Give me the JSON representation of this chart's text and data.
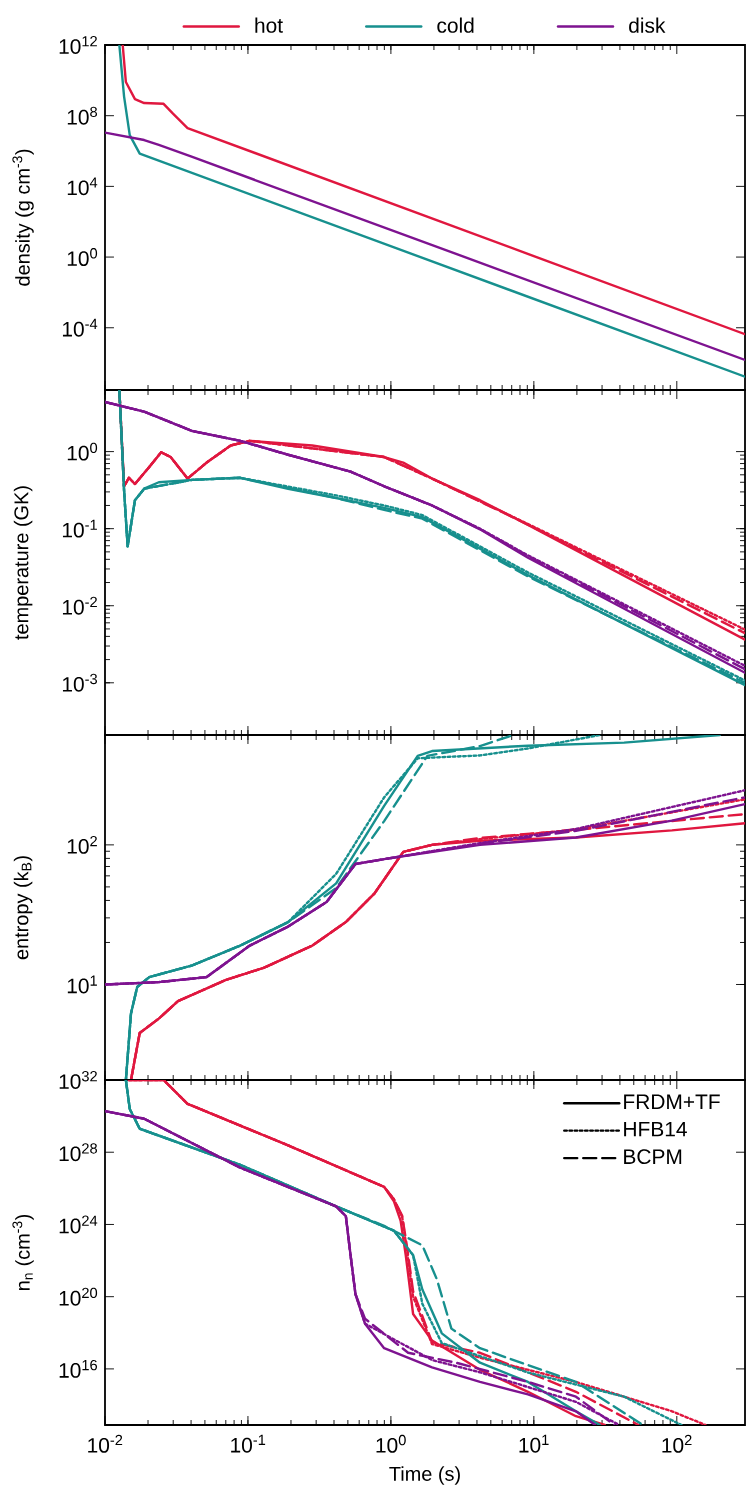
{
  "chart_data": [
    {
      "type": "line",
      "log": "xy",
      "legend": "top",
      "ylabel": "density (g cm$^{-3}$)",
      "tick_labels": "y",
      "xlim": [
        0.01,
        300
      ],
      "xticks": [
        {
          "value": 0.01,
          "label": null
        },
        {
          "value": 0.1,
          "label": null
        },
        {
          "value": 1,
          "label": null
        },
        {
          "value": 10,
          "label": null
        },
        {
          "value": 100,
          "label": null
        }
      ],
      "ylim": [
        3e-08,
        1000000000000.0
      ],
      "yticks": [
        {
          "value": 0.0001,
          "label": "10$^{-4}$"
        },
        {
          "value": 1,
          "label": "10$^{0}$"
        },
        {
          "value": 10000.0,
          "label": "10$^{4}$"
        },
        {
          "value": 100000000.0,
          "label": "10$^{8}$"
        },
        {
          "value": 1000000000000.0,
          "label": "10$^{12}$"
        }
      ],
      "series": [
        {
          "name": "hot",
          "color": "#e0173f",
          "line_style": "solid",
          "x": [
            0.0133,
            0.014,
            0.0162,
            0.0188,
            0.0257,
            0.0299,
            0.0378,
            300
          ],
          "values": [
            1000000000000.0,
            8000000000.0,
            870000000.0,
            520000000.0,
            470000000.0,
            130000000.0,
            20000000.0,
            4.3e-05
          ]
        },
        {
          "name": "cold",
          "color": "#17908e",
          "line_style": "solid",
          "x": [
            0.0126,
            0.0136,
            0.0149,
            0.0175,
            300
          ],
          "values": [
            1000000000000.0,
            1200000000.0,
            7900000.0,
            710000.0,
            1.7e-07
          ]
        },
        {
          "name": "disk",
          "color": "#7e1390",
          "line_style": "solid",
          "x": [
            0.01,
            0.0188,
            0.0238,
            0.0408,
            300
          ],
          "values": [
            11000000.0,
            4200000.0,
            2200000.0,
            460000.0,
            1.5e-06
          ]
        }
      ]
    },
    {
      "type": "line",
      "log": "xy",
      "ylabel": "temperature (GK)",
      "tick_labels": "y",
      "xlim": [
        0.01,
        300
      ],
      "xticks": [
        {
          "value": 0.01,
          "label": null
        },
        {
          "value": 0.1,
          "label": null
        },
        {
          "value": 1,
          "label": null
        },
        {
          "value": 10,
          "label": null
        },
        {
          "value": 100,
          "label": null
        }
      ],
      "ylim": [
        0.00021,
        6.3
      ],
      "yticks": [
        {
          "value": 0.001,
          "label": "10$^{-3}$"
        },
        {
          "value": 0.01,
          "label": "10$^{-2}$"
        },
        {
          "value": 0.1,
          "label": "10$^{-1}$"
        },
        {
          "value": 1,
          "label": "10$^{0}$"
        }
      ],
      "series": [
        {
          "color": "#e0173f",
          "line_style": "solid",
          "x": [
            0.0126,
            0.0136,
            0.0147,
            0.0162,
            0.0204,
            0.0247,
            0.0288,
            0.0378,
            0.0514,
            0.0757,
            0.103,
            0.282,
            0.897,
            1.22,
            1.94,
            4.2,
            9.1,
            300
          ],
          "values": [
            6.3,
            0.355,
            0.457,
            0.38,
            0.63,
            0.98,
            0.85,
            0.447,
            0.72,
            1.2,
            1.38,
            1.2,
            0.85,
            0.72,
            0.447,
            0.234,
            0.112,
            0.00363
          ]
        },
        {
          "color": "#e0173f",
          "line_style": "dotted",
          "x": [
            0.0126,
            0.0136,
            0.0147,
            0.0162,
            0.0204,
            0.0247,
            0.0288,
            0.0378,
            0.0514,
            0.0757,
            0.103,
            0.897,
            1.94,
            9.1,
            300
          ],
          "values": [
            6.3,
            0.355,
            0.457,
            0.38,
            0.63,
            0.98,
            0.85,
            0.447,
            0.72,
            1.2,
            1.38,
            0.85,
            0.447,
            0.115,
            0.0049
          ]
        },
        {
          "color": "#e0173f",
          "line_style": "dashed",
          "x": [
            0.0126,
            0.0136,
            0.0147,
            0.0162,
            0.0204,
            0.0247,
            0.0288,
            0.0378,
            0.0514,
            0.0757,
            0.103,
            0.897,
            1.94,
            9.1,
            300
          ],
          "values": [
            6.3,
            0.355,
            0.457,
            0.38,
            0.63,
            0.98,
            0.85,
            0.447,
            0.72,
            1.2,
            1.38,
            0.85,
            0.447,
            0.113,
            0.0044
          ]
        },
        {
          "color": "#17908e",
          "line_style": "solid",
          "x": [
            0.0126,
            0.0136,
            0.0144,
            0.0162,
            0.0188,
            0.0238,
            0.0408,
            0.0883,
            0.191,
            0.414,
            0.897,
            1.66,
            4.2,
            9.1,
            300
          ],
          "values": [
            6.3,
            0.31,
            0.059,
            0.234,
            0.33,
            0.4,
            0.43,
            0.457,
            0.33,
            0.25,
            0.186,
            0.141,
            0.055,
            0.025,
            0.00093
          ]
        },
        {
          "color": "#17908e",
          "line_style": "dotted",
          "x": [
            0.0126,
            0.0136,
            0.0144,
            0.0162,
            0.0188,
            0.0408,
            0.0883,
            0.414,
            0.897,
            1.66,
            9.1,
            300
          ],
          "values": [
            6.3,
            0.31,
            0.059,
            0.234,
            0.33,
            0.43,
            0.457,
            0.27,
            0.2,
            0.15,
            0.027,
            0.00107
          ]
        },
        {
          "color": "#17908e",
          "line_style": "dashed",
          "x": [
            0.0126,
            0.0136,
            0.0144,
            0.0162,
            0.0188,
            0.0408,
            0.0883,
            0.414,
            0.897,
            1.66,
            9.1,
            300
          ],
          "values": [
            6.3,
            0.31,
            0.059,
            0.234,
            0.33,
            0.43,
            0.457,
            0.25,
            0.175,
            0.135,
            0.024,
            0.001
          ]
        },
        {
          "color": "#7e1390",
          "line_style": "solid",
          "x": [
            0.01,
            0.0188,
            0.0408,
            0.0883,
            0.191,
            0.522,
            0.897,
            1.94,
            4.2,
            9.1,
            300
          ],
          "values": [
            4.4,
            3.3,
            1.85,
            1.38,
            0.91,
            0.55,
            0.355,
            0.2,
            0.098,
            0.042,
            0.00135
          ]
        },
        {
          "color": "#7e1390",
          "line_style": "dotted",
          "x": [
            0.01,
            0.0188,
            0.0408,
            0.0883,
            0.191,
            0.522,
            0.897,
            1.94,
            4.2,
            9.1,
            300
          ],
          "values": [
            4.4,
            3.3,
            1.85,
            1.38,
            0.91,
            0.55,
            0.355,
            0.2,
            0.1,
            0.045,
            0.00166
          ]
        },
        {
          "color": "#7e1390",
          "line_style": "dashed",
          "x": [
            0.01,
            0.0188,
            0.0408,
            0.0883,
            0.191,
            0.522,
            0.897,
            1.94,
            4.2,
            9.1,
            300
          ],
          "values": [
            4.4,
            3.3,
            1.85,
            1.38,
            0.91,
            0.55,
            0.355,
            0.2,
            0.099,
            0.044,
            0.0015
          ]
        }
      ]
    },
    {
      "type": "line",
      "log": "xy",
      "ylabel": "entropy (k$_{B}$)",
      "tick_labels": "y",
      "xlim": [
        0.01,
        300
      ],
      "xticks": [
        {
          "value": 0.01,
          "label": null
        },
        {
          "value": 0.1,
          "label": null
        },
        {
          "value": 1,
          "label": null
        },
        {
          "value": 10,
          "label": null
        },
        {
          "value": 100,
          "label": null
        }
      ],
      "ylim": [
        2.07,
        612
      ],
      "yticks": [
        {
          "value": 10,
          "label": "10$^{1}$"
        },
        {
          "value": 100,
          "label": "10$^{2}$"
        }
      ],
      "series": [
        {
          "color": "#e0173f",
          "line_style": "solid",
          "x": [
            0.0152,
            0.0175,
            0.0238,
            0.0324,
            0.0702,
            0.13,
            0.282,
            0.484,
            0.769,
            1.22,
            1.94,
            4.2,
            19.7,
            92.5,
            300
          ],
          "values": [
            2.07,
            4.5,
            5.7,
            7.6,
            10.8,
            13.2,
            19,
            28,
            45,
            89,
            100,
            107,
            113,
            127,
            143
          ]
        },
        {
          "color": "#e0173f",
          "line_style": "dotted",
          "x": [
            0.0152,
            0.0175,
            0.0238,
            0.0324,
            0.0702,
            0.13,
            0.282,
            0.484,
            0.769,
            1.22,
            1.94,
            4.2,
            19.7,
            300
          ],
          "values": [
            2.07,
            4.5,
            5.7,
            7.6,
            10.8,
            13.2,
            19,
            28,
            45,
            89,
            100,
            110,
            129,
            212
          ]
        },
        {
          "color": "#e0173f",
          "line_style": "dashed",
          "x": [
            0.0152,
            0.0175,
            0.0238,
            0.0324,
            0.0702,
            0.13,
            0.282,
            0.484,
            0.769,
            1.22,
            1.94,
            4.2,
            19.7,
            300
          ],
          "values": [
            2.07,
            4.5,
            5.7,
            7.6,
            10.8,
            13.2,
            19,
            28,
            45,
            89,
            100,
            112,
            128,
            166
          ]
        },
        {
          "color": "#17908e",
          "line_style": "solid",
          "x": [
            0.014,
            0.0152,
            0.0168,
            0.0204,
            0.0408,
            0.0883,
            0.191,
            0.414,
            0.897,
            1.54,
            1.94,
            9.1,
            42.8,
            200
          ],
          "values": [
            2.07,
            6.2,
            9.6,
            11.3,
            13.7,
            19,
            28,
            53,
            190,
            434,
            470,
            513,
            540,
            612
          ]
        },
        {
          "color": "#17908e",
          "line_style": "dotted",
          "x": [
            0.014,
            0.0152,
            0.0168,
            0.0204,
            0.0408,
            0.0883,
            0.191,
            0.414,
            0.897,
            1.54,
            4.2,
            9.1,
            29
          ],
          "values": [
            2.07,
            6.2,
            9.6,
            11.3,
            13.7,
            19,
            28,
            62,
            219,
            417,
            437,
            490,
            612
          ]
        },
        {
          "color": "#17908e",
          "line_style": "dashed",
          "x": [
            0.014,
            0.0152,
            0.0168,
            0.0204,
            0.0408,
            0.0883,
            0.191,
            0.414,
            0.897,
            1.8,
            4.2,
            7.2
          ],
          "values": [
            2.07,
            6.2,
            9.6,
            11.3,
            13.7,
            19,
            28,
            49,
            148,
            434,
            510,
            612
          ]
        },
        {
          "color": "#7e1390",
          "line_style": "solid",
          "x": [
            0.01,
            0.0238,
            0.0514,
            0.103,
            0.191,
            0.355,
            0.565,
            0.897,
            4.2,
            19.7,
            92.5,
            300
          ],
          "values": [
            10,
            10.4,
            11.3,
            19,
            26,
            39,
            73,
            79,
            100,
            113,
            149,
            196
          ]
        },
        {
          "color": "#7e1390",
          "line_style": "dotted",
          "x": [
            0.01,
            0.0238,
            0.0514,
            0.103,
            0.191,
            0.355,
            0.565,
            0.897,
            4.2,
            19.7,
            300
          ],
          "values": [
            10,
            10.4,
            11.3,
            19,
            26,
            39,
            73,
            79,
            103,
            130,
            246
          ]
        },
        {
          "color": "#7e1390",
          "line_style": "dashed",
          "x": [
            0.01,
            0.0238,
            0.0514,
            0.103,
            0.191,
            0.355,
            0.565,
            0.897,
            4.2,
            19.7,
            300
          ],
          "values": [
            10,
            10.4,
            11.3,
            19,
            26,
            39,
            73,
            79,
            102,
            126,
            219
          ]
        }
      ]
    },
    {
      "type": "line",
      "log": "xy",
      "legend": "top right",
      "xlabel": "Time (s)",
      "ylabel": "n$_{n}$ (cm$^{-3}$)",
      "xlim": [
        0.01,
        300
      ],
      "xticks": [
        {
          "value": 0.01,
          "label": "10$^{-2}$"
        },
        {
          "value": 0.1,
          "label": "10$^{-1}$"
        },
        {
          "value": 1,
          "label": "10$^{0}$"
        },
        {
          "value": 10,
          "label": "10$^{1}$"
        },
        {
          "value": 100,
          "label": "10$^{2}$"
        }
      ],
      "ylim": [
        7800000000000.0,
        1e+32
      ],
      "yticks": [
        {
          "value": 1e+16,
          "label": "10$^{16}$"
        },
        {
          "value": 1e+20,
          "label": "10$^{20}$"
        },
        {
          "value": 1e+24,
          "label": "10$^{24}$"
        },
        {
          "value": 1e+28,
          "label": "10$^{28}$"
        },
        {
          "value": 1e+32,
          "label": "10$^{32}$"
        }
      ],
      "series": [
        {
          "color": "#e0173f",
          "line_style": "solid",
          "x": [
            0.0147,
            0.0257,
            0.0378,
            0.191,
            0.897,
            1.05,
            1.17,
            1.27,
            1.43,
            1.94,
            4.2,
            9.1,
            19.7,
            31.4
          ],
          "values": [
            1e+32,
            1e+32,
            4.8e+30,
            2.4e+28,
            1.2e+26,
            1.9e+25,
            1.6e+24,
            2e+22,
            1.1e+19,
            3.7e+17,
            8900000000000000.0,
            540000000000000.0,
            24000000000000.0,
            7800000000000.0
          ]
        },
        {
          "color": "#e0173f",
          "line_style": "dotted",
          "x": [
            0.0147,
            0.0257,
            0.0378,
            0.191,
            0.897,
            1.05,
            1.2,
            1.3,
            1.43,
            1.94,
            4.2,
            19.7,
            92.5,
            159
          ],
          "values": [
            1e+32,
            1e+32,
            4.8e+30,
            2.4e+28,
            1.2e+26,
            2.5e+25,
            2.5e+24,
            3e+22,
            1e+20,
            2.4e+17,
            4.2e+16,
            1900000000000000.0,
            45000000000000.0,
            7800000000000.0
          ]
        },
        {
          "color": "#e0173f",
          "line_style": "dashed",
          "x": [
            0.0147,
            0.0257,
            0.0378,
            0.191,
            0.897,
            1.05,
            1.2,
            1.3,
            1.43,
            1.94,
            4.2,
            19.7,
            54
          ],
          "values": [
            1e+32,
            1e+32,
            4.8e+30,
            2.4e+28,
            1.2e+26,
            2.5e+25,
            3e+24,
            5e+22,
            2e+20,
            3e+17,
            7.8e+16,
            540000000000000.0,
            7800000000000.0
          ]
        },
        {
          "color": "#17908e",
          "line_style": "solid",
          "x": [
            0.014,
            0.0149,
            0.0175,
            0.0883,
            0.414,
            1.05,
            1.43,
            1.66,
            2.27,
            4.2,
            9.1,
            19.7,
            29
          ],
          "values": [
            1e+32,
            2.5e+30,
            2e+29,
            2e+27,
            1e+25,
            4.5e+23,
            2e+22,
            2.5e+20,
            9.3e+17,
            2.2e+16,
            1900000000000000.0,
            45000000000000.0,
            7800000000000.0
          ]
        },
        {
          "color": "#17908e",
          "line_style": "dotted",
          "x": [
            0.014,
            0.0149,
            0.0175,
            0.0883,
            0.414,
            1.05,
            1.43,
            1.66,
            2.27,
            9.1,
            42.8,
            108
          ],
          "values": [
            1e+32,
            2.5e+30,
            2e+29,
            2e+27,
            1e+25,
            4.5e+23,
            2e+22,
            4e+19,
            2.7e+17,
            6300000000000000.0,
            290000000000000.0,
            7800000000000.0
          ]
        },
        {
          "color": "#17908e",
          "line_style": "dashed",
          "x": [
            0.014,
            0.0149,
            0.0175,
            0.0883,
            0.414,
            0.897,
            1.66,
            2.1,
            2.65,
            4.2,
            19.7,
            58
          ],
          "values": [
            1e+32,
            2.5e+30,
            2e+29,
            2e+27,
            1e+25,
            8.3e+23,
            7e+22,
            8.9e+20,
            1.7e+18,
            1.4e+17,
            1900000000000000.0,
            7800000000000.0
          ]
        },
        {
          "color": "#7e1390",
          "line_style": "solid",
          "x": [
            0.01,
            0.0188,
            0.0883,
            0.414,
            0.484,
            0.522,
            0.565,
            0.659,
            0.897,
            1.94,
            4.2,
            9.1,
            19.7,
            26.9
          ],
          "values": [
            1.9e+30,
            7.2e+29,
            1.4e+27,
            1e+25,
            2.9e+24,
            2e+22,
            1.4e+20,
            3.2e+18,
            1.4e+17,
            1.2e+16,
            1900000000000000.0,
            390000000000000.0,
            45000000000000.0,
            7800000000000.0
          ]
        },
        {
          "color": "#7e1390",
          "line_style": "dotted",
          "x": [
            0.01,
            0.0188,
            0.0883,
            0.414,
            0.484,
            0.522,
            0.565,
            0.659,
            1.94,
            4.2,
            19.7,
            39.6
          ],
          "values": [
            1.9e+30,
            7.2e+29,
            1.4e+27,
            1e+25,
            2.9e+24,
            2e+22,
            1.4e+20,
            3.2e+18,
            3.1e+16,
            6500000000000000.0,
            150000000000000.0,
            7800000000000.0
          ]
        },
        {
          "color": "#7e1390",
          "line_style": "dashed",
          "x": [
            0.01,
            0.0188,
            0.0883,
            0.414,
            0.484,
            0.522,
            0.565,
            0.659,
            1.32,
            2.86,
            9.1,
            19.7,
            36.6
          ],
          "values": [
            1.9e+30,
            7.2e+29,
            1.4e+27,
            1e+25,
            2.9e+24,
            2e+22,
            1.4e+20,
            6e+18,
            7.8e+16,
            2.2e+16,
            1900000000000000.0,
            290000000000000.0,
            7800000000000.0
          ]
        },
        {
          "name": "FRDM+TF",
          "color": "#000000",
          "line_style": "solid"
        },
        {
          "name": "HFB14",
          "color": "#000000",
          "line_style": "dotted"
        },
        {
          "name": "BCPM",
          "color": "#000000",
          "line_style": "dashed"
        }
      ]
    }
  ]
}
